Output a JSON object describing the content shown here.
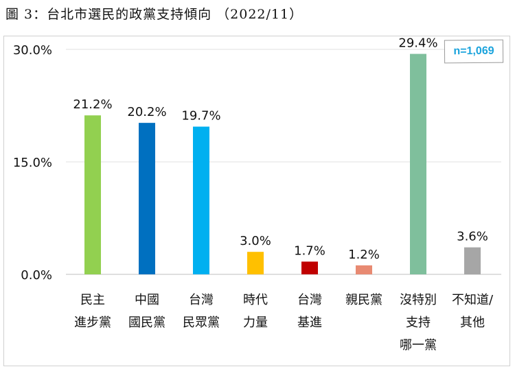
{
  "title": "圖 3：台北市選民的政黨支持傾向 （2022/11）",
  "note": "n=1,069",
  "chart_data": {
    "type": "bar",
    "title": "",
    "xlabel": "",
    "ylabel": "",
    "ylim": [
      0,
      30
    ],
    "yticks": [
      "0.0%",
      "15.0%",
      "30.0%"
    ],
    "ytick_values": [
      0,
      15,
      30
    ],
    "grid": true,
    "categories": [
      [
        "民主",
        "進步黨"
      ],
      [
        "中國",
        "國民黨"
      ],
      [
        "台灣",
        "民眾黨"
      ],
      [
        "時代",
        "力量"
      ],
      [
        "台灣",
        "基進"
      ],
      [
        "親民黨"
      ],
      [
        "沒特別",
        "支持",
        "哪一黨"
      ],
      [
        "不知道/",
        "其他"
      ]
    ],
    "values": [
      21.2,
      20.2,
      19.7,
      3.0,
      1.7,
      1.2,
      29.4,
      3.6
    ],
    "labels": [
      "21.2%",
      "20.2%",
      "19.7%",
      "3.0%",
      "1.7%",
      "1.2%",
      "29.4%",
      "3.6%"
    ],
    "colors": [
      "#92d050",
      "#0070c0",
      "#00b0f0",
      "#ffc000",
      "#c00000",
      "#e88a72",
      "#7fbf9c",
      "#a6a6a6"
    ]
  }
}
